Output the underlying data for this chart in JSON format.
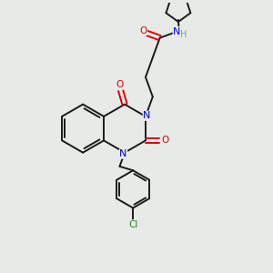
{
  "background_color": "#e8eae8",
  "bond_color": "#1a1a1a",
  "N_color": "#0000cc",
  "O_color": "#dd0000",
  "Cl_color": "#228822",
  "H_color": "#66aaaa",
  "figsize": [
    3.0,
    3.0
  ],
  "dpi": 100,
  "xlim": [
    0,
    10
  ],
  "ylim": [
    0,
    10
  ]
}
